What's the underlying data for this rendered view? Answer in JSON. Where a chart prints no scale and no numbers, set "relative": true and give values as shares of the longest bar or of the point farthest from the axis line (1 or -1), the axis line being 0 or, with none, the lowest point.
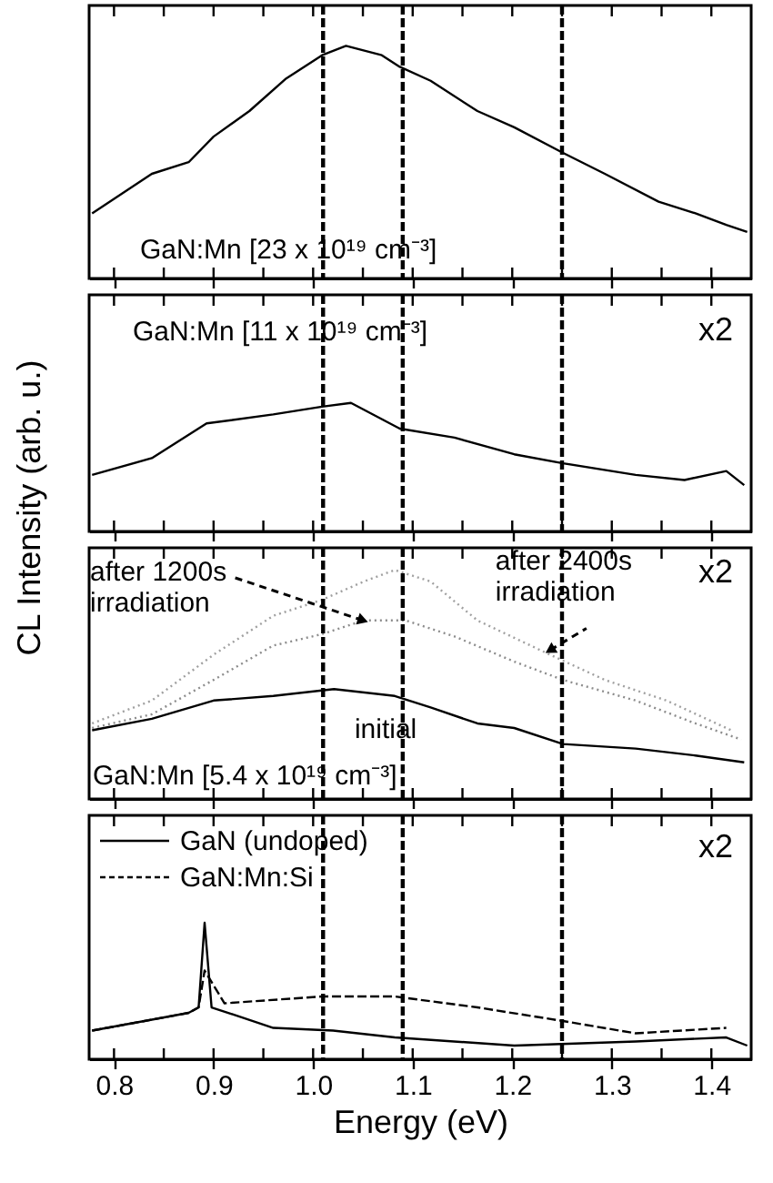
{
  "chart_data": [
    {
      "type": "line",
      "relative": true,
      "ylabel": "CL Intensity (arb. u.)",
      "xlim": [
        0.775,
        1.44
      ],
      "tick_labels": false,
      "xticks": [
        {
          "value": 0.8,
          "label": null
        },
        {
          "value": 0.85,
          "label": null
        },
        {
          "value": 0.9,
          "label": null
        },
        {
          "value": 0.95,
          "label": null
        },
        {
          "value": 1.0,
          "label": null
        },
        {
          "value": 1.05,
          "label": null
        },
        {
          "value": 1.1,
          "label": null
        },
        {
          "value": 1.15,
          "label": null
        },
        {
          "value": 1.2,
          "label": null
        },
        {
          "value": 1.25,
          "label": null
        },
        {
          "value": 1.3,
          "label": null
        },
        {
          "value": 1.35,
          "label": null
        },
        {
          "value": 1.4,
          "label": null
        }
      ],
      "series": [
        {
          "color": "#000000",
          "line_style": "solid",
          "x": [
            0.778,
            0.838,
            0.875,
            0.9,
            0.936,
            0.973,
            1.009,
            1.033,
            1.069,
            1.087,
            1.118,
            1.165,
            1.202,
            1.251,
            1.293,
            1.347,
            1.384,
            1.415,
            1.436
          ],
          "values": [
            0.28,
            0.45,
            0.5,
            0.61,
            0.72,
            0.86,
            0.96,
            1,
            0.96,
            0.91,
            0.85,
            0.72,
            0.65,
            0.54,
            0.45,
            0.33,
            0.28,
            0.23,
            0.2
          ]
        }
      ],
      "ref_lines": [
        {
          "axis": "x",
          "value": 1.01,
          "line_style": "dashed",
          "color": "#000000"
        },
        {
          "axis": "x",
          "value": 1.09,
          "line_style": "dashed",
          "color": "#000000"
        },
        {
          "axis": "x",
          "value": 1.25,
          "line_style": "dashed",
          "color": "#000000"
        }
      ],
      "annotations": [
        "GaN:Mn [23 x 10¹⁹ cm⁻³]"
      ]
    },
    {
      "type": "line",
      "relative": true,
      "xlim": [
        0.775,
        1.44
      ],
      "tick_labels": false,
      "xticks": [
        {
          "value": 0.8,
          "label": null
        },
        {
          "value": 0.85,
          "label": null
        },
        {
          "value": 0.9,
          "label": null
        },
        {
          "value": 0.95,
          "label": null
        },
        {
          "value": 1.0,
          "label": null
        },
        {
          "value": 1.05,
          "label": null
        },
        {
          "value": 1.1,
          "label": null
        },
        {
          "value": 1.15,
          "label": null
        },
        {
          "value": 1.2,
          "label": null
        },
        {
          "value": 1.25,
          "label": null
        },
        {
          "value": 1.3,
          "label": null
        },
        {
          "value": 1.35,
          "label": null
        },
        {
          "value": 1.4,
          "label": null
        }
      ],
      "series": [
        {
          "color": "#000000",
          "line_style": "solid",
          "x": [
            0.778,
            0.838,
            0.893,
            0.96,
            1.009,
            1.038,
            1.087,
            1.142,
            1.202,
            1.251,
            1.324,
            1.373,
            1.415,
            1.433
          ],
          "values": [
            0.44,
            0.57,
            0.84,
            0.91,
            0.97,
            1,
            0.8,
            0.73,
            0.6,
            0.53,
            0.44,
            0.4,
            0.47,
            0.36
          ]
        }
      ],
      "ref_lines": [
        {
          "axis": "x",
          "value": 1.01,
          "line_style": "dashed",
          "color": "#000000"
        },
        {
          "axis": "x",
          "value": 1.09,
          "line_style": "dashed",
          "color": "#000000"
        },
        {
          "axis": "x",
          "value": 1.25,
          "line_style": "dashed",
          "color": "#000000"
        }
      ],
      "annotations": [
        "GaN:Mn [11 x 10¹⁹ cm⁻³]",
        "x2"
      ]
    },
    {
      "type": "line",
      "relative": true,
      "xlim": [
        0.775,
        1.44
      ],
      "tick_labels": false,
      "xticks": [
        {
          "value": 0.8,
          "label": null
        },
        {
          "value": 0.85,
          "label": null
        },
        {
          "value": 0.9,
          "label": null
        },
        {
          "value": 0.95,
          "label": null
        },
        {
          "value": 1.0,
          "label": null
        },
        {
          "value": 1.05,
          "label": null
        },
        {
          "value": 1.1,
          "label": null
        },
        {
          "value": 1.15,
          "label": null
        },
        {
          "value": 1.2,
          "label": null
        },
        {
          "value": 1.25,
          "label": null
        },
        {
          "value": 1.3,
          "label": null
        },
        {
          "value": 1.35,
          "label": null
        },
        {
          "value": 1.4,
          "label": null
        }
      ],
      "series": [
        {
          "color": "#000000",
          "line_style": "solid",
          "x": [
            0.778,
            0.838,
            0.9,
            0.96,
            1.021,
            1.082,
            1.118,
            1.165,
            1.202,
            1.251,
            1.324,
            1.384,
            1.433
          ],
          "values": [
            0.3,
            0.35,
            0.43,
            0.45,
            0.48,
            0.45,
            0.4,
            0.33,
            0.31,
            0.24,
            0.22,
            0.19,
            0.16
          ]
        },
        {
          "color": "#8c8c8c",
          "line_style": "dotted",
          "x": [
            0.778,
            0.838,
            0.9,
            0.96,
            1.009,
            1.051,
            1.093,
            1.142,
            1.202,
            1.251,
            1.324,
            1.384,
            1.43
          ],
          "values": [
            0.31,
            0.37,
            0.52,
            0.67,
            0.72,
            0.78,
            0.78,
            0.71,
            0.6,
            0.52,
            0.43,
            0.33,
            0.26
          ]
        },
        {
          "color": "#a0a0a0",
          "line_style": "dotted",
          "x": [
            0.778,
            0.838,
            0.9,
            0.96,
            1.009,
            1.051,
            1.082,
            1.118,
            1.165,
            1.238,
            1.293,
            1.355,
            1.42
          ],
          "values": [
            0.33,
            0.43,
            0.63,
            0.8,
            0.87,
            0.95,
            1,
            0.95,
            0.78,
            0.63,
            0.52,
            0.43,
            0.3
          ]
        }
      ],
      "ref_lines": [
        {
          "axis": "x",
          "value": 1.01,
          "line_style": "dashed",
          "color": "#000000"
        },
        {
          "axis": "x",
          "value": 1.09,
          "line_style": "dashed",
          "color": "#000000"
        },
        {
          "axis": "x",
          "value": 1.25,
          "line_style": "dashed",
          "color": "#000000"
        }
      ],
      "annotations": [
        "GaN:Mn [5.4 x 10¹⁹ cm⁻³]",
        "x2",
        {
          "text": "after 1200s irradiation",
          "x": 1.05,
          "y": 0.78
        },
        {
          "text": "after 2400s irradiation",
          "x": 1.238,
          "y": 0.65
        },
        {
          "text": "initial",
          "x": 1.04,
          "y": 0.48
        }
      ]
    },
    {
      "type": "line",
      "relative": true,
      "xlabel": "Energy (eV)",
      "xlim": [
        0.775,
        1.44
      ],
      "tick_labels": "x",
      "legend": "top left",
      "xticks": [
        {
          "value": 0.8,
          "label": "0.8"
        },
        {
          "value": 0.85,
          "label": null
        },
        {
          "value": 0.9,
          "label": "0.9"
        },
        {
          "value": 0.95,
          "label": null
        },
        {
          "value": 1.0,
          "label": "1.0"
        },
        {
          "value": 1.05,
          "label": null
        },
        {
          "value": 1.1,
          "label": "1.1"
        },
        {
          "value": 1.15,
          "label": null
        },
        {
          "value": 1.2,
          "label": "1.2"
        },
        {
          "value": 1.25,
          "label": null
        },
        {
          "value": 1.3,
          "label": "1.3"
        },
        {
          "value": 1.35,
          "label": null
        },
        {
          "value": 1.4,
          "label": "1.4"
        }
      ],
      "series": [
        {
          "name": "GaN (undoped)",
          "color": "#000000",
          "line_style": "solid",
          "x": [
            0.778,
            0.838,
            0.875,
            0.885,
            0.891,
            0.898,
            0.96,
            1.02,
            1.082,
            1.202,
            1.324,
            1.415,
            1.436
          ],
          "values": [
            0.21,
            0.29,
            0.34,
            0.38,
            1,
            0.38,
            0.23,
            0.21,
            0.16,
            0.1,
            0.13,
            0.16,
            0.1
          ]
        },
        {
          "name": "GaN:Mn:Si",
          "color": "#000000",
          "line_style": "dashed",
          "x": [
            0.778,
            0.838,
            0.875,
            0.885,
            0.891,
            0.911,
            1.009,
            1.082,
            1.165,
            1.251,
            1.324,
            1.415
          ],
          "values": [
            0.21,
            0.29,
            0.34,
            0.38,
            0.65,
            0.41,
            0.46,
            0.46,
            0.38,
            0.28,
            0.19,
            0.23
          ]
        }
      ],
      "ref_lines": [
        {
          "axis": "x",
          "value": 1.01,
          "line_style": "dashed",
          "color": "#000000"
        },
        {
          "axis": "x",
          "value": 1.09,
          "line_style": "dashed",
          "color": "#000000"
        },
        {
          "axis": "x",
          "value": 1.25,
          "line_style": "dashed",
          "color": "#000000"
        }
      ],
      "annotations": [
        "x2"
      ]
    }
  ]
}
